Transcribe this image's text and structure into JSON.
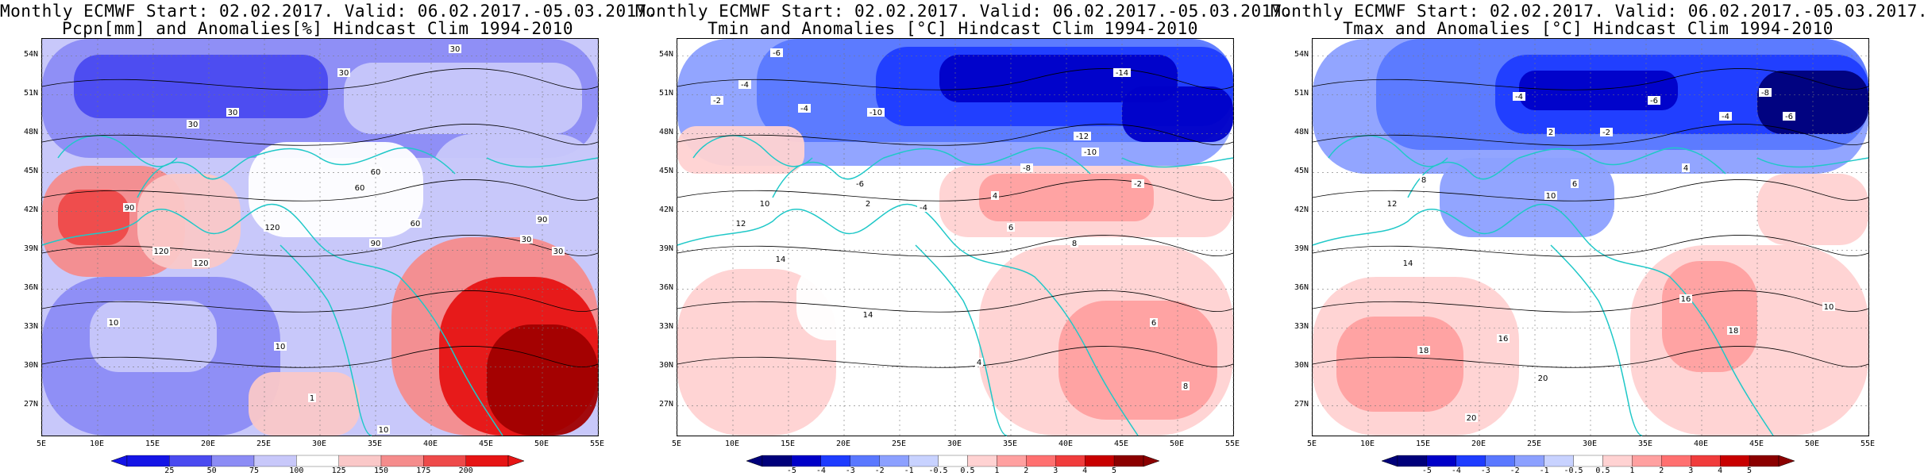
{
  "panels": [
    {
      "title_line1": "Monthly ECMWF Start: 02.02.2017. Valid: 06.02.2017.-05.03.2017.",
      "title_line2": "Pcpn[mm] and Anomalies[%] Hindcast Clim 1994-2010",
      "colorbar_labels": [
        "25",
        "50",
        "75",
        "100",
        "125",
        "150",
        "175",
        "200"
      ],
      "colorbar_colors": [
        "#1414e6",
        "#4a4af0",
        "#8c8cf5",
        "#c8c8fa",
        "#ffffff",
        "#fac8c8",
        "#f58c8c",
        "#ee4a4a",
        "#e61414"
      ],
      "contour_labels": [
        "30",
        "30",
        "30",
        "60",
        "90",
        "120",
        "120",
        "90",
        "60",
        "30",
        "10",
        "10",
        "30",
        "60",
        "90",
        "120",
        "30",
        "10",
        "1"
      ]
    },
    {
      "title_line1": "Monthly ECMWF Start: 02.02.2017. Valid: 06.02.2017.-05.03.2017.",
      "title_line2": "Tmin and Anomalies [°C] Hindcast Clim 1994-2010",
      "colorbar_labels": [
        "-5",
        "-4",
        "-3",
        "-2",
        "-1",
        "-0.5",
        "0.5",
        "1",
        "2",
        "3",
        "4",
        "5"
      ],
      "colorbar_colors": [
        "#00007a",
        "#0000c8",
        "#1e3cff",
        "#5a78ff",
        "#8ca0ff",
        "#c8d2ff",
        "#ffffff",
        "#ffd2d2",
        "#ffa0a0",
        "#ff7070",
        "#f03c3c",
        "#c80000",
        "#8b0000"
      ],
      "contour_labels": [
        "-6",
        "-4",
        "-2",
        "-4",
        "-10",
        "-14",
        "-12",
        "-10",
        "-8",
        "-6",
        "-4",
        "-2",
        "2",
        "4",
        "6",
        "8",
        "10",
        "12",
        "14",
        "14",
        "4",
        "6",
        "8"
      ]
    },
    {
      "title_line1": "Monthly ECMWF Start: 02.02.2017. Valid: 06.02.2017.-05.03.2017.",
      "title_line2": "Tmax and Anomalies [°C] Hindcast Clim 1994-2010",
      "colorbar_labels": [
        "-5",
        "-4",
        "-3",
        "-2",
        "-1",
        "-0.5",
        "0.5",
        "1",
        "2",
        "3",
        "4",
        "5"
      ],
      "colorbar_colors": [
        "#00007a",
        "#0000c8",
        "#1e3cff",
        "#5a78ff",
        "#8ca0ff",
        "#c8d2ff",
        "#ffffff",
        "#ffd2d2",
        "#ffa0a0",
        "#ff7070",
        "#f03c3c",
        "#c80000",
        "#8b0000"
      ],
      "contour_labels": [
        "-6",
        "-4",
        "-2",
        "-8",
        "-6",
        "-4",
        "2",
        "4",
        "6",
        "8",
        "10",
        "12",
        "14",
        "16",
        "18",
        "20",
        "20",
        "18",
        "16",
        "10"
      ]
    }
  ],
  "lat_ticks": [
    "54N",
    "51N",
    "48N",
    "45N",
    "42N",
    "39N",
    "36N",
    "33N",
    "30N",
    "27N"
  ],
  "lon_ticks": [
    "5E",
    "10E",
    "15E",
    "20E",
    "25E",
    "30E",
    "35E",
    "40E",
    "45E",
    "50E",
    "55E"
  ]
}
